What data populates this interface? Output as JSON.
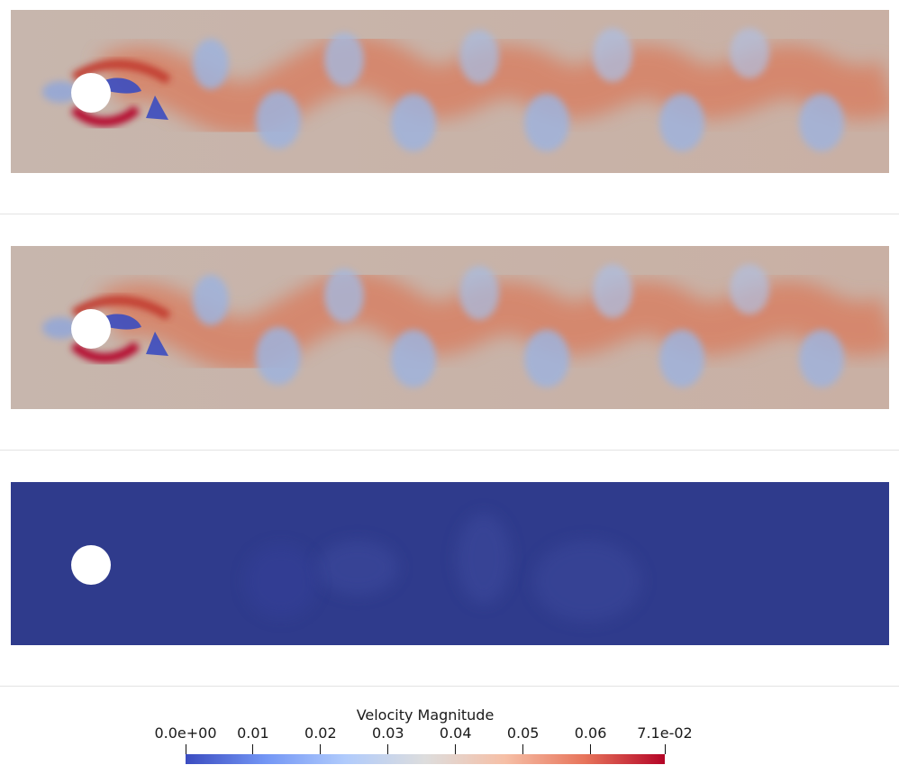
{
  "panels": [
    {
      "id": "panel-1",
      "field": "flow"
    },
    {
      "id": "panel-2",
      "field": "flow"
    },
    {
      "id": "panel-3",
      "field": "uniform"
    }
  ],
  "colorbar": {
    "title": "Velocity Magnitude",
    "min": 0.0,
    "max": 0.071,
    "tick_labels": [
      "0.0e+00",
      "0.01",
      "0.02",
      "0.03",
      "0.04",
      "0.05",
      "0.06",
      "7.1e-02"
    ],
    "tick_values": [
      0.0,
      0.01,
      0.02,
      0.03,
      0.04,
      0.05,
      0.06,
      0.071
    ],
    "colormap": [
      "#3b4cc0",
      "#7396f5",
      "#b0cbfc",
      "#dddddd",
      "#f6bfa6",
      "#e7745b",
      "#b40426"
    ]
  },
  "colors": {
    "background_field": "#c9b3a8",
    "low_velocity": "#3b4cc0",
    "high_velocity": "#b40426",
    "uniform_field": "#2f3b8c",
    "obstacle": "#ffffff"
  }
}
